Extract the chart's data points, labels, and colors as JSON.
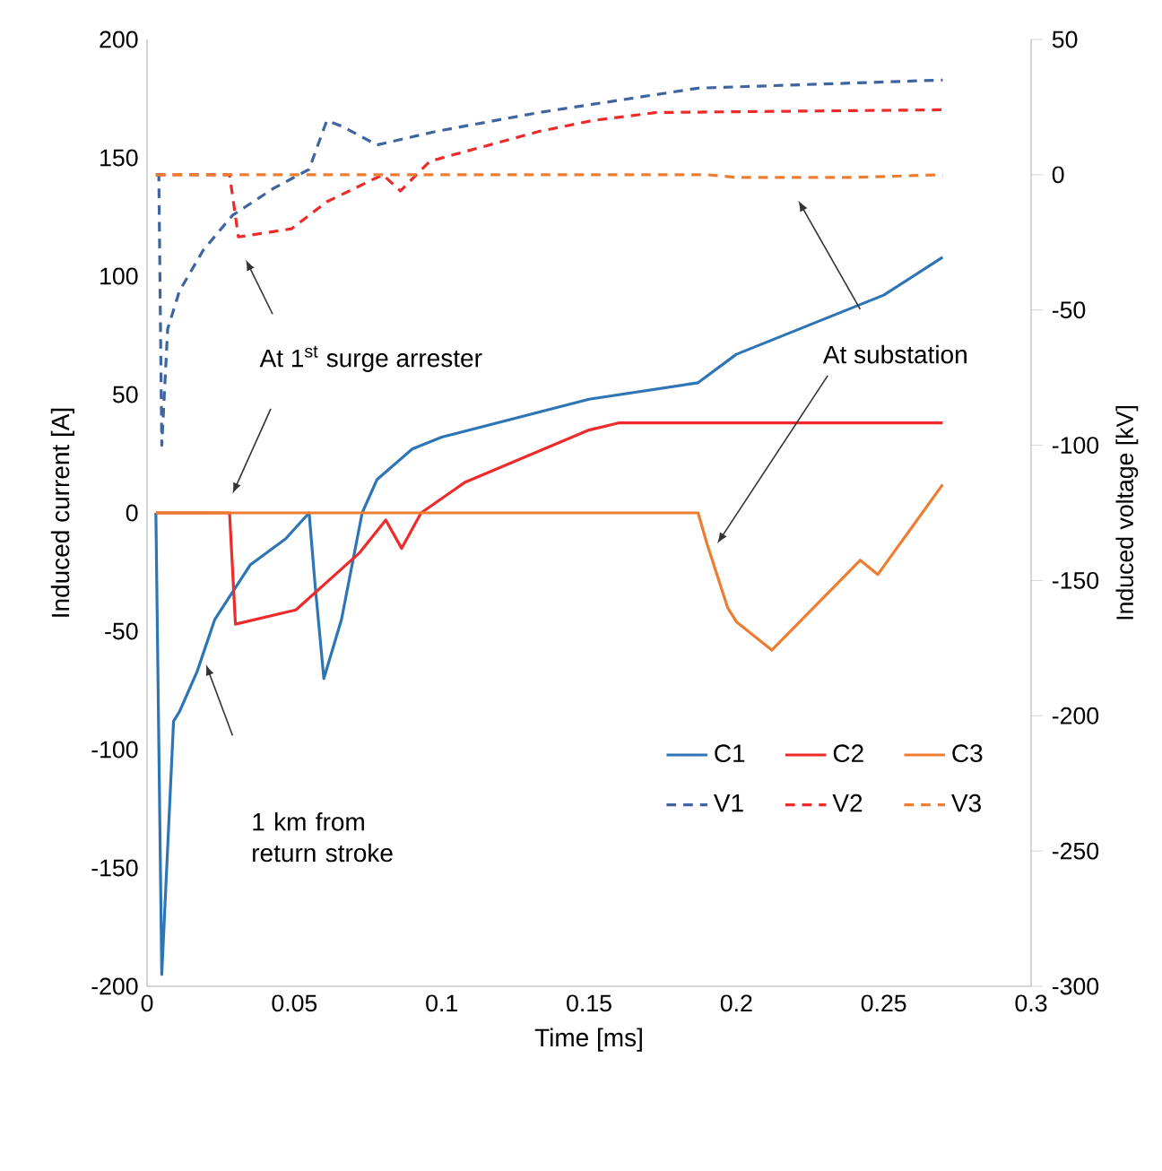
{
  "chart_data": {
    "type": "line",
    "xlabel": "Time [ms]",
    "ylabel": "Induced current [A]",
    "y2label": "Induced voltage [kV]",
    "xlim": [
      0,
      0.3
    ],
    "xticks": [
      0,
      0.05,
      0.1,
      0.15,
      0.2,
      0.25,
      0.3
    ],
    "ylim": [
      -200,
      200
    ],
    "yticks": [
      -200,
      -150,
      -100,
      -50,
      0,
      50,
      100,
      150,
      200
    ],
    "y2lim": [
      -300,
      50
    ],
    "y2ticks": [
      -300,
      -250,
      -200,
      -150,
      -100,
      -50,
      0,
      50
    ],
    "legend": "bottom right",
    "grid": false,
    "annotations": [
      "At 1$^{st}$ surge arrester",
      "At substation",
      "1 km from return stroke"
    ],
    "series": [
      {
        "name": "C1",
        "color": "#2e75b6",
        "line_style": "solid",
        "x": [
          0.003,
          0.005,
          0.009,
          0.011,
          0.017,
          0.023,
          0.035,
          0.047,
          0.055,
          0.057,
          0.06,
          0.066,
          0.073,
          0.078,
          0.09,
          0.1,
          0.15,
          0.187,
          0.2,
          0.25,
          0.27
        ],
        "values": [
          0,
          -195,
          -88,
          -84,
          -67,
          -45,
          -22,
          -11,
          0,
          -30,
          -70,
          -45,
          0,
          14,
          27,
          32,
          48,
          55,
          67,
          92,
          108
        ]
      },
      {
        "name": "C2",
        "color": "#ee2a2a",
        "line_style": "solid",
        "x": [
          0.003,
          0.028,
          0.03,
          0.0505,
          0.072,
          0.081,
          0.0864,
          0.093,
          0.108,
          0.15,
          0.16,
          0.27
        ],
        "values": [
          0,
          0,
          -47,
          -41,
          -17,
          -3,
          -15,
          0,
          13,
          35,
          38,
          38
        ]
      },
      {
        "name": "C3",
        "color": "#ed7d31",
        "line_style": "solid",
        "x": [
          0.003,
          0.187,
          0.19,
          0.197,
          0.2,
          0.212,
          0.242,
          0.248,
          0.27
        ],
        "values": [
          0,
          0,
          -13,
          -40,
          -46,
          -58,
          -20,
          -26,
          12
        ]
      },
      {
        "name": "V1",
        "color": "#3e65a0",
        "line_style": "dashed",
        "axis": "y2",
        "x": [
          0.003,
          0.004,
          0.005,
          0.007,
          0.011,
          0.019,
          0.029,
          0.043,
          0.055,
          0.061,
          0.066,
          0.078,
          0.098,
          0.133,
          0.151,
          0.187,
          0.27
        ],
        "values": [
          0,
          0,
          -100,
          -57,
          -43,
          -28,
          -15,
          -5,
          2,
          20,
          18,
          11,
          16,
          23,
          26,
          32,
          35
        ]
      },
      {
        "name": "V2",
        "color": "#ee2a2a",
        "line_style": "dashed",
        "axis": "y2",
        "x": [
          0.003,
          0.028,
          0.031,
          0.049,
          0.061,
          0.08,
          0.086,
          0.096,
          0.133,
          0.151,
          0.173,
          0.27
        ],
        "values": [
          0,
          0,
          -23,
          -20,
          -10,
          0,
          -6,
          5,
          16,
          20,
          23,
          24
        ]
      },
      {
        "name": "V3",
        "color": "#ed7d31",
        "line_style": "dashed",
        "axis": "y2",
        "x": [
          0.003,
          0.19,
          0.2,
          0.24,
          0.27
        ],
        "values": [
          0,
          0,
          -1,
          -1,
          0
        ]
      }
    ]
  }
}
